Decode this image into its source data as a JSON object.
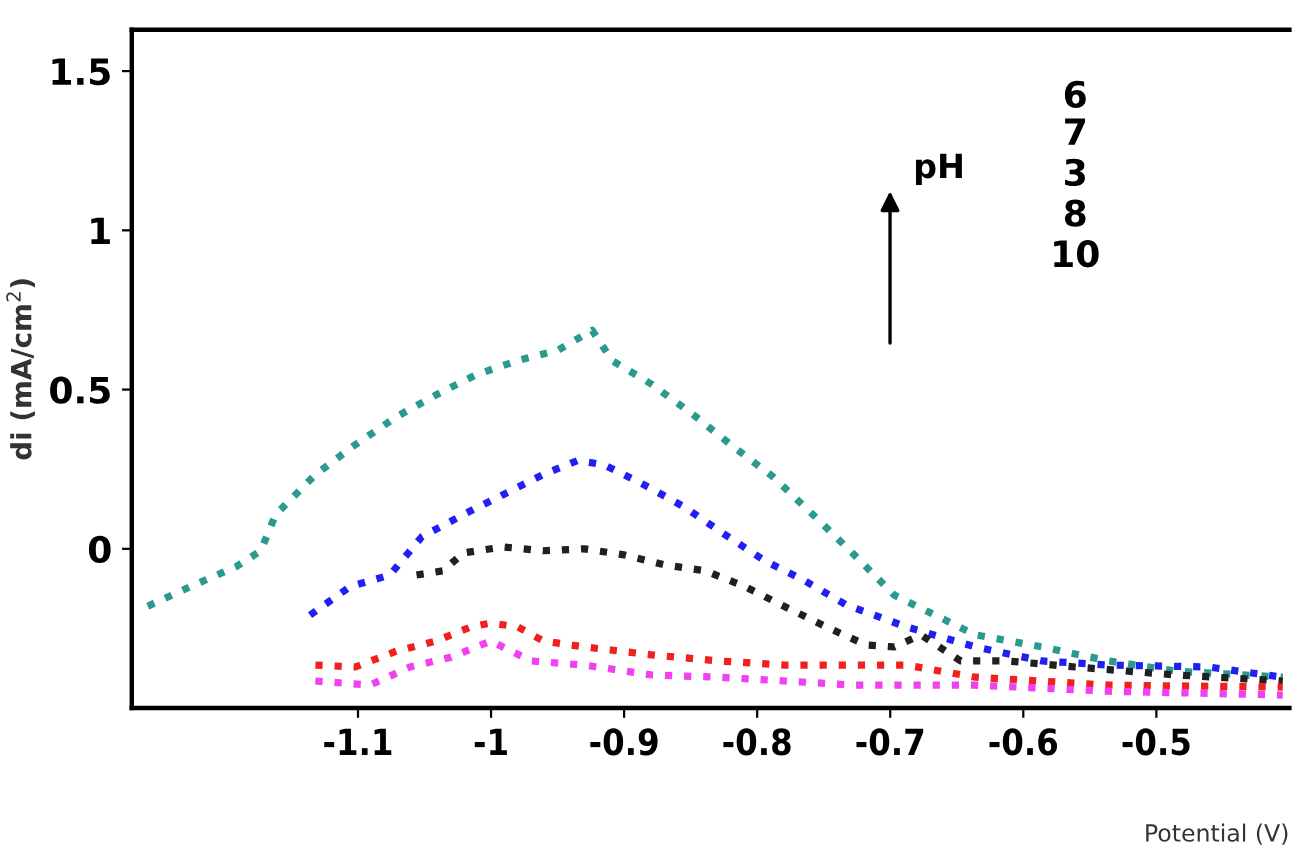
{
  "chart_data": {
    "type": "line",
    "xlabel": "Potential (V)",
    "ylabel": "di (mA/cm$^{2}$)",
    "xlim": [
      -1.27,
      -0.4
    ],
    "ylim": [
      -0.5,
      1.63
    ],
    "xticks": [
      -1.1,
      -1,
      -0.9,
      -0.8,
      -0.7,
      -0.6,
      -0.5
    ],
    "yticks": [
      0,
      0.5,
      1,
      1.5
    ],
    "grid": false,
    "legend": false,
    "line_style": "dotted",
    "annotations": [
      "pH",
      "6",
      "7",
      "3",
      "8",
      "10"
    ],
    "series": [
      {
        "color": "#2a9a8c",
        "x": [
          -1.258,
          -1.223,
          -1.192,
          -1.173,
          -1.162,
          -1.132,
          -1.102,
          -1.071,
          -1.041,
          -1.011,
          -0.98,
          -0.95,
          -0.924,
          -0.909,
          -0.879,
          -0.848,
          -0.818,
          -0.788,
          -0.758,
          -0.727,
          -0.697,
          -0.688,
          -0.636,
          -0.586,
          -0.536,
          -0.485,
          -0.405
        ],
        "values": [
          -0.18,
          -0.113,
          -0.057,
          -0.006,
          0.107,
          0.233,
          0.327,
          0.415,
          0.484,
          0.547,
          0.591,
          0.623,
          0.686,
          0.591,
          0.516,
          0.421,
          0.321,
          0.226,
          0.107,
          -0.019,
          -0.145,
          -0.164,
          -0.27,
          -0.308,
          -0.352,
          -0.384,
          -0.403
        ]
      },
      {
        "color": "#2020f0",
        "x": [
          -1.136,
          -1.106,
          -1.076,
          -1.052,
          -1.021,
          -0.991,
          -0.961,
          -0.935,
          -0.915,
          -0.885,
          -0.855,
          -0.824,
          -0.794,
          -0.764,
          -0.733,
          -0.688,
          -0.636,
          -0.586,
          -0.536,
          -0.461,
          -0.405
        ],
        "values": [
          -0.208,
          -0.119,
          -0.082,
          0.038,
          0.107,
          0.17,
          0.233,
          0.277,
          0.264,
          0.201,
          0.132,
          0.044,
          -0.038,
          -0.101,
          -0.176,
          -0.245,
          -0.308,
          -0.352,
          -0.365,
          -0.371,
          -0.403
        ]
      },
      {
        "color": "#202020",
        "x": [
          -1.056,
          -1.036,
          -1.021,
          -0.991,
          -0.961,
          -0.93,
          -0.9,
          -0.87,
          -0.839,
          -0.809,
          -0.779,
          -0.748,
          -0.718,
          -0.697,
          -0.677,
          -0.647,
          -0.612,
          -0.561,
          -0.485,
          -0.405
        ],
        "values": [
          -0.082,
          -0.069,
          -0.013,
          0.006,
          -0.006,
          0.0,
          -0.019,
          -0.05,
          -0.069,
          -0.119,
          -0.182,
          -0.245,
          -0.302,
          -0.308,
          -0.27,
          -0.352,
          -0.352,
          -0.371,
          -0.396,
          -0.415
        ]
      },
      {
        "color": "#f02020",
        "x": [
          -1.132,
          -1.102,
          -1.071,
          -1.041,
          -1.015,
          -1.0,
          -0.98,
          -0.961,
          -0.93,
          -0.879,
          -0.829,
          -0.779,
          -0.727,
          -0.688,
          -0.636,
          -0.536,
          -0.405
        ],
        "values": [
          -0.365,
          -0.371,
          -0.321,
          -0.289,
          -0.245,
          -0.233,
          -0.245,
          -0.289,
          -0.308,
          -0.333,
          -0.352,
          -0.365,
          -0.365,
          -0.365,
          -0.403,
          -0.428,
          -0.434
        ]
      },
      {
        "color": "#f040f0",
        "x": [
          -1.132,
          -1.091,
          -1.061,
          -1.03,
          -1.0,
          -0.97,
          -0.93,
          -0.879,
          -0.829,
          -0.779,
          -0.727,
          -0.636,
          -0.536,
          -0.405
        ],
        "values": [
          -0.415,
          -0.428,
          -0.371,
          -0.34,
          -0.289,
          -0.352,
          -0.365,
          -0.396,
          -0.403,
          -0.415,
          -0.428,
          -0.428,
          -0.447,
          -0.459
        ]
      }
    ]
  }
}
